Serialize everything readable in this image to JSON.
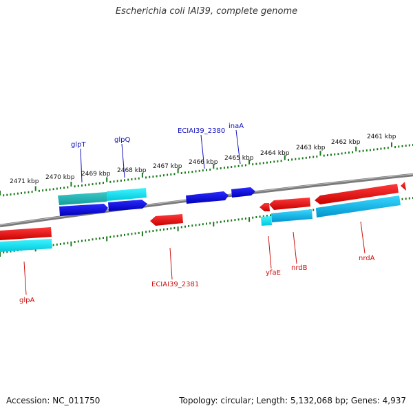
{
  "title": "Escherichia coli IAI39, complete genome",
  "footer": {
    "accession": "Accession: NC_011750",
    "summary": "Topology: circular; Length: 5,132,068 bp; Genes: 4,937"
  },
  "colors": {
    "backbone": "#8a8a8a",
    "tick": "#1a7a1a",
    "forward_gene": "#0000e6",
    "forward_cds": "#00d8e8",
    "reverse_gene": "#ee0000",
    "reverse_cds": "#00bfe0",
    "forward_label": "#1010c0",
    "reverse_label": "#cc1010"
  },
  "ruler": {
    "upper_labels": [
      "2471 kbp",
      "2470 kbp",
      "2469 kbp",
      "2468 kbp",
      "2467 kbp",
      "2466 kbp",
      "2465 kbp",
      "2464 kbp",
      "2463 kbp",
      "2462 kbp",
      "2461 kbp"
    ]
  },
  "genes": {
    "forward": [
      "glpT",
      "glpQ",
      "ECIAI39_2380",
      "inaA"
    ],
    "reverse": [
      "glpA",
      "ECIAI39_2381",
      "yfaE",
      "nrdB",
      "nrdA"
    ]
  }
}
